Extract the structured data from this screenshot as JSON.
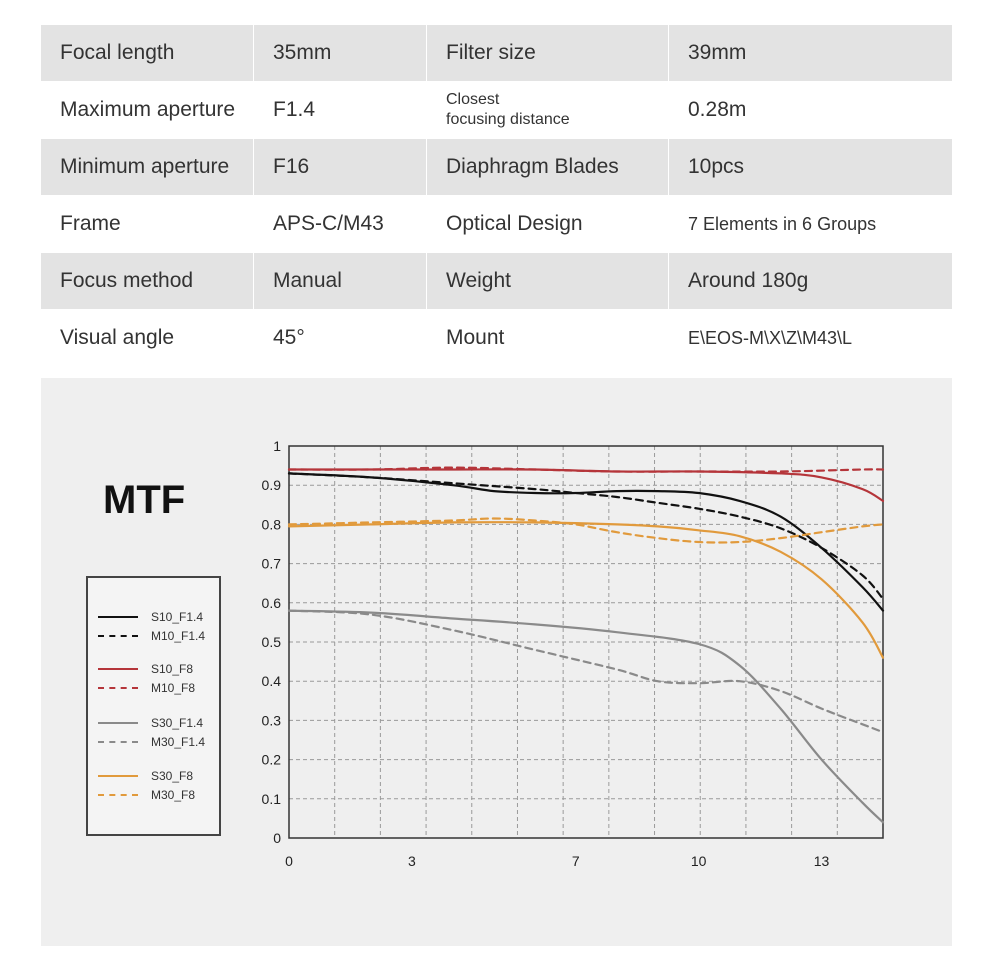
{
  "specs": [
    [
      "Focal length",
      "35mm",
      "Filter size",
      "39mm"
    ],
    [
      "Maximum aperture",
      "F1.4",
      "Closest\nfocusing distance",
      "0.28m"
    ],
    [
      "Minimum aperture",
      "F16",
      "Diaphragm Blades",
      "10pcs"
    ],
    [
      "Frame",
      "APS-C/M43",
      "Optical Design",
      "7 Elements in 6 Groups"
    ],
    [
      "Focus method",
      "Manual",
      "Weight",
      "Around 180g"
    ],
    [
      "Visual angle",
      "45°",
      "Mount",
      "E\\EOS-M\\X\\Z\\M43\\L"
    ]
  ],
  "colors": {
    "black": "#111111",
    "red": "#b5353a",
    "gray": "#8a8a8a",
    "orange": "#e19a3c",
    "row_shade": "#e3e3e3",
    "panel": "#efefef"
  },
  "chart_data": {
    "type": "line",
    "title": "MTF",
    "xlabel": "",
    "ylabel": "",
    "xlim": [
      0,
      14.5
    ],
    "ylim": [
      0,
      1
    ],
    "x_ticks": [
      0,
      3,
      7,
      10,
      13
    ],
    "y_ticks": [
      0,
      0.1,
      0.2,
      0.3,
      0.4,
      0.5,
      0.6,
      0.7,
      0.8,
      0.9,
      1
    ],
    "y_tick_labels": [
      "0",
      "0.1",
      "0.2",
      "0.3",
      "0.4",
      "0.5",
      "0.6",
      "0.7",
      "0.8",
      "0.9",
      "1"
    ],
    "grid": true,
    "legend_position": "left",
    "series": [
      {
        "name": "S10_F1.4",
        "color": "#111111",
        "dash": false,
        "x": [
          0,
          2,
          4,
          5,
          6,
          7,
          8,
          9,
          10,
          11,
          12,
          13,
          14,
          14.5
        ],
        "y": [
          0.93,
          0.92,
          0.9,
          0.885,
          0.88,
          0.88,
          0.885,
          0.885,
          0.88,
          0.86,
          0.82,
          0.74,
          0.64,
          0.58
        ]
      },
      {
        "name": "M10_F1.4",
        "color": "#111111",
        "dash": true,
        "x": [
          0,
          2,
          4,
          6,
          7,
          8,
          9,
          10,
          11,
          12,
          13,
          14,
          14.5
        ],
        "y": [
          0.93,
          0.92,
          0.905,
          0.89,
          0.88,
          0.87,
          0.855,
          0.84,
          0.82,
          0.79,
          0.74,
          0.67,
          0.61
        ]
      },
      {
        "name": "S10_F8",
        "color": "#b5353a",
        "dash": false,
        "x": [
          0,
          2,
          4,
          6,
          8,
          10,
          12,
          13,
          14,
          14.5
        ],
        "y": [
          0.94,
          0.94,
          0.94,
          0.94,
          0.935,
          0.935,
          0.93,
          0.92,
          0.89,
          0.86
        ]
      },
      {
        "name": "M10_F8",
        "color": "#b5353a",
        "dash": true,
        "x": [
          0,
          2,
          4,
          6,
          8,
          10,
          12,
          14,
          14.5
        ],
        "y": [
          0.94,
          0.94,
          0.945,
          0.94,
          0.935,
          0.935,
          0.935,
          0.94,
          0.94
        ]
      },
      {
        "name": "S30_F1.4",
        "color": "#8a8a8a",
        "dash": false,
        "x": [
          0,
          2,
          4,
          6,
          8,
          10,
          11,
          12,
          13,
          14,
          14.5
        ],
        "y": [
          0.58,
          0.575,
          0.56,
          0.545,
          0.525,
          0.495,
          0.44,
          0.33,
          0.2,
          0.09,
          0.04
        ]
      },
      {
        "name": "M30_F1.4",
        "color": "#8a8a8a",
        "dash": true,
        "x": [
          0,
          2,
          4,
          6,
          8,
          9,
          10,
          11,
          12,
          13,
          14,
          14.5
        ],
        "y": [
          0.58,
          0.57,
          0.53,
          0.48,
          0.43,
          0.4,
          0.395,
          0.4,
          0.375,
          0.33,
          0.29,
          0.27
        ]
      },
      {
        "name": "S30_F8",
        "color": "#e19a3c",
        "dash": false,
        "x": [
          0,
          2,
          4,
          6,
          8,
          9,
          10,
          11,
          12,
          13,
          14,
          14.5
        ],
        "y": [
          0.795,
          0.8,
          0.805,
          0.805,
          0.8,
          0.795,
          0.785,
          0.77,
          0.73,
          0.66,
          0.55,
          0.46
        ]
      },
      {
        "name": "M30_F8",
        "color": "#e19a3c",
        "dash": true,
        "x": [
          0,
          2,
          4,
          5,
          6,
          7,
          8,
          9,
          10,
          11,
          12,
          13,
          14,
          14.5
        ],
        "y": [
          0.8,
          0.805,
          0.81,
          0.815,
          0.81,
          0.8,
          0.78,
          0.765,
          0.755,
          0.755,
          0.765,
          0.78,
          0.795,
          0.8
        ]
      }
    ]
  }
}
